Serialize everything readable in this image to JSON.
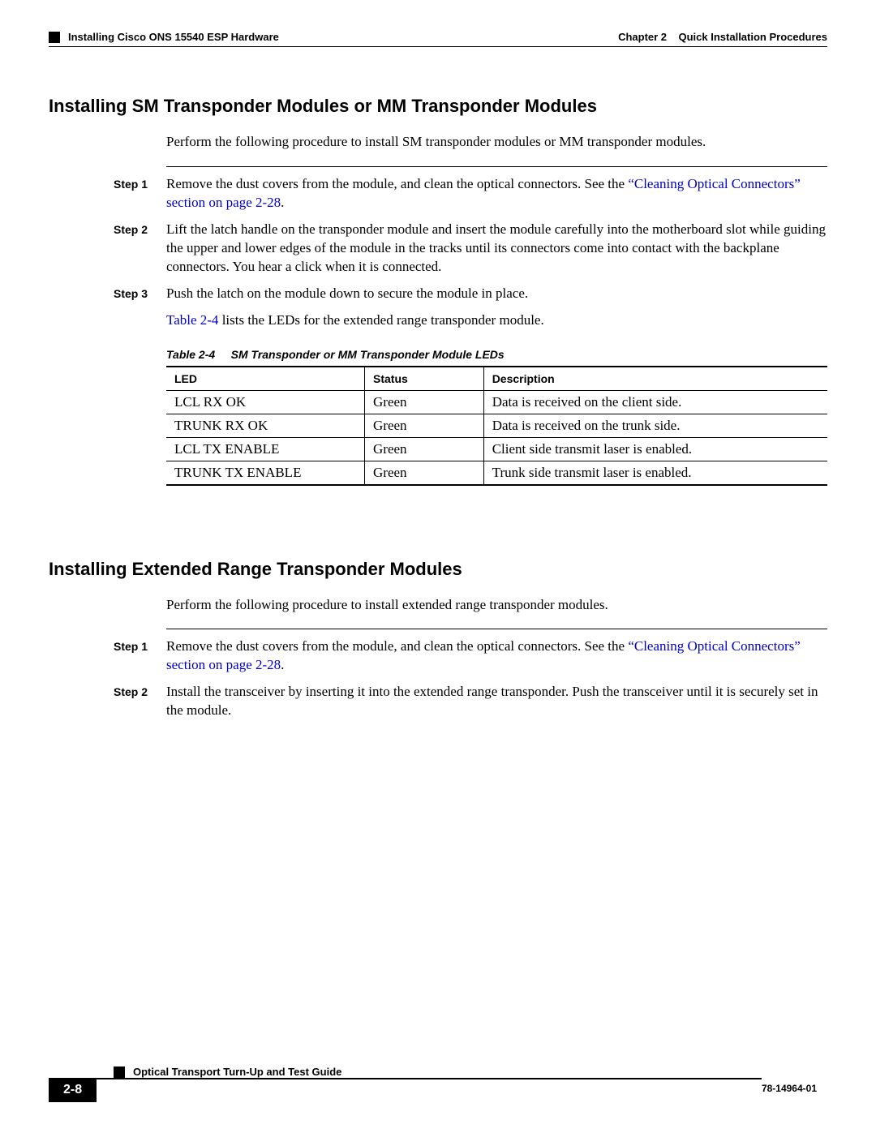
{
  "header": {
    "left_square": true,
    "left_text": "Installing Cisco ONS 15540 ESP Hardware",
    "right_chapter": "Chapter 2",
    "right_title": "Quick Installation Procedures"
  },
  "section1": {
    "heading": "Installing SM Transponder Modules or MM Transponder Modules",
    "intro": "Perform the following procedure to install SM transponder modules or MM transponder modules.",
    "steps": [
      {
        "label": "Step 1",
        "pre": "Remove the dust covers from the module, and clean the optical connectors. See the ",
        "link": "“Cleaning Optical Connectors” section on page 2-28",
        "post": "."
      },
      {
        "label": "Step 2",
        "text": "Lift the latch handle on the transponder module and insert the module carefully into the motherboard slot while guiding the upper and lower edges of the module in the tracks until its connectors come into contact with the backplane connectors. You hear a click when it is connected."
      },
      {
        "label": "Step 3",
        "text": "Push the latch on the module down to secure the module in place."
      }
    ],
    "ref_link": "Table 2-4",
    "ref_rest": " lists the LEDs for the extended range transponder module.",
    "table_caption_label": "Table 2-4",
    "table_caption_title": "SM Transponder or MM Transponder Module LEDs",
    "table": {
      "columns": [
        "LED",
        "Status",
        "Description"
      ],
      "col_widths": [
        "30%",
        "18%",
        "52%"
      ],
      "rows": [
        [
          "LCL RX OK",
          "Green",
          "Data is received on the client side."
        ],
        [
          "TRUNK RX OK",
          "Green",
          "Data is received on the trunk side."
        ],
        [
          "LCL TX ENABLE",
          "Green",
          "Client side transmit laser is enabled."
        ],
        [
          "TRUNK TX ENABLE",
          "Green",
          "Trunk side transmit laser is enabled."
        ]
      ]
    }
  },
  "section2": {
    "heading": "Installing Extended Range Transponder Modules",
    "intro": "Perform the following procedure to install extended range transponder modules.",
    "steps": [
      {
        "label": "Step 1",
        "pre": "Remove the dust covers from the module, and clean the optical connectors. See the ",
        "link": "“Cleaning Optical Connectors” section on page 2-28",
        "post": "."
      },
      {
        "label": "Step 2",
        "text": "Install the transceiver by inserting it into the extended range transponder. Push the transceiver until it is securely set in the module."
      }
    ]
  },
  "footer": {
    "guide": "Optical Transport Turn-Up and Test Guide",
    "page": "2-8",
    "docid": "78-14964-01"
  },
  "colors": {
    "link": "#0000cc",
    "text": "#000000",
    "background": "#ffffff"
  }
}
